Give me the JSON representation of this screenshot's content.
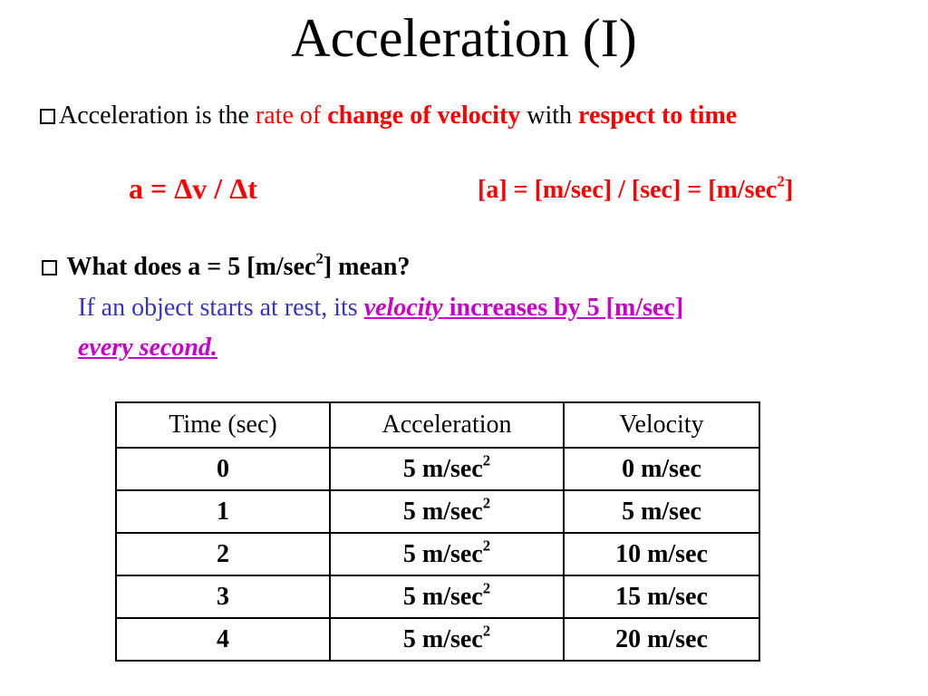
{
  "slide": {
    "title": "Acceleration (I)"
  },
  "definition": {
    "part1": "Acceleration is the",
    "part2": "rate of",
    "part3": "change of velocity",
    "part4": "with",
    "part5": "respect to time"
  },
  "formula": {
    "left_a": "a = ",
    "left_delta1": "Δ",
    "left_v": "v / ",
    "left_delta2": "Δ",
    "left_t": "t",
    "units_pre": "[a] = [m/sec] / [sec] = [m/sec",
    "units_sup": "2",
    "units_post": "]"
  },
  "question": {
    "pre": "What does   a =  5 [m/sec",
    "sup": "2",
    "post": "] mean?"
  },
  "answer": {
    "pre": "If an object starts at rest, its ",
    "velocity_word": "velocity",
    "increases": " increases by 5 [m/sec] ",
    "every_second": "every second."
  },
  "table": {
    "headers": [
      "Time (sec)",
      "Acceleration",
      "Velocity"
    ],
    "accel_unit": "m/sec",
    "accel_sup": "2",
    "rows": [
      {
        "time": "0",
        "accel": "5",
        "velocity": "0 m/sec"
      },
      {
        "time": "1",
        "accel": "5",
        "velocity": "5 m/sec"
      },
      {
        "time": "2",
        "accel": "5",
        "velocity": "10 m/sec"
      },
      {
        "time": "3",
        "accel": "5",
        "velocity": "15 m/sec"
      },
      {
        "time": "4",
        "accel": "5",
        "velocity": "20 m/sec"
      }
    ]
  },
  "colors": {
    "emphasis_red": "#ff0000",
    "answer_blue": "#3333cc",
    "highlight_magenta": "#cc00cc"
  }
}
